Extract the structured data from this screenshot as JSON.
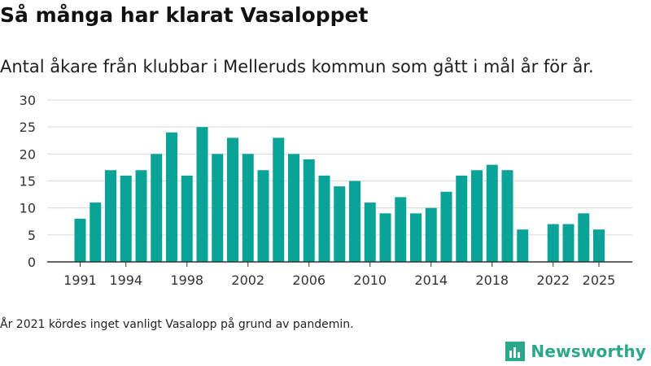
{
  "title": "Så många har klarat Vasaloppet",
  "subtitle": "Antal åkare från klubbar i Melleruds kommun som gått i mål år för år.",
  "footnote": "År 2021 kördes inget vanligt Vasalopp på grund av pandemin.",
  "brand": {
    "name": "Newsworthy",
    "color": "#2aa889",
    "icon": "newsworthy-logo-icon"
  },
  "colors": {
    "bar": "#0aa398",
    "grid": "#d9d9d9",
    "axis": "#333333",
    "tick_text": "#333333"
  },
  "chart_data": {
    "type": "bar",
    "title": "Så många har klarat Vasaloppet",
    "xlabel": "",
    "ylabel": "",
    "ylim": [
      0,
      30
    ],
    "yticks": [
      0,
      5,
      10,
      15,
      20,
      25,
      30
    ],
    "xticks": [
      1991,
      1994,
      1998,
      2002,
      2006,
      2010,
      2014,
      2018,
      2022,
      2025
    ],
    "categories": [
      1991,
      1992,
      1993,
      1994,
      1995,
      1996,
      1997,
      1998,
      1999,
      2000,
      2001,
      2002,
      2003,
      2004,
      2005,
      2006,
      2007,
      2008,
      2009,
      2010,
      2011,
      2012,
      2013,
      2014,
      2015,
      2016,
      2017,
      2018,
      2019,
      2020,
      2021,
      2022,
      2023,
      2024,
      2025
    ],
    "values": [
      8,
      11,
      17,
      16,
      17,
      20,
      24,
      16,
      25,
      20,
      23,
      20,
      17,
      23,
      20,
      19,
      16,
      14,
      15,
      11,
      9,
      12,
      9,
      10,
      13,
      16,
      17,
      18,
      17,
      6,
      null,
      7,
      7,
      9,
      6
    ],
    "grid": true
  }
}
